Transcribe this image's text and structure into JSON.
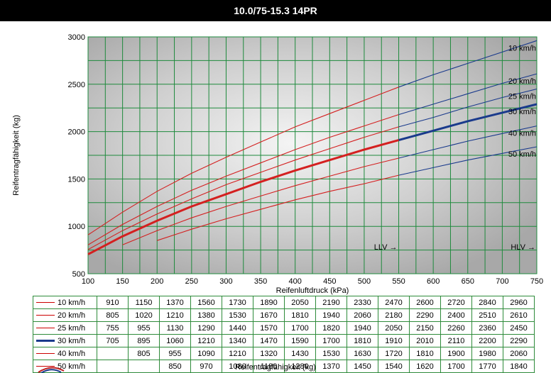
{
  "header": {
    "title": "10.0/75-15.3 14PR"
  },
  "chart_data": {
    "type": "line",
    "xlabel": "Reifenluftdruck (kPa)",
    "ylabel": "Reifentragfähigkeit (kg)",
    "xlim": [
      100,
      750
    ],
    "ylim": [
      500,
      3000
    ],
    "x_ticks": [
      100,
      150,
      200,
      250,
      300,
      350,
      400,
      450,
      500,
      550,
      600,
      650,
      700,
      750
    ],
    "y_ticks": [
      500,
      1000,
      1500,
      2000,
      2500,
      3000
    ],
    "grid": true,
    "x": [
      100,
      150,
      200,
      250,
      300,
      350,
      400,
      450,
      500,
      550,
      600,
      650,
      700,
      750
    ],
    "series": [
      {
        "name": "10 km/h",
        "values": [
          910,
          1150,
          1370,
          1560,
          1730,
          1890,
          2050,
          2190,
          2330,
          2470,
          2600,
          2720,
          2840,
          2960
        ]
      },
      {
        "name": "20 km/h",
        "values": [
          805,
          1020,
          1210,
          1380,
          1530,
          1670,
          1810,
          1940,
          2060,
          2180,
          2290,
          2400,
          2510,
          2610
        ]
      },
      {
        "name": "25 km/h",
        "values": [
          755,
          955,
          1130,
          1290,
          1440,
          1570,
          1700,
          1820,
          1940,
          2050,
          2150,
          2260,
          2360,
          2450
        ]
      },
      {
        "name": "30 km/h",
        "values": [
          705,
          895,
          1060,
          1210,
          1340,
          1470,
          1590,
          1700,
          1810,
          1910,
          2010,
          2110,
          2200,
          2290
        ]
      },
      {
        "name": "40 km/h",
        "values": [
          null,
          805,
          955,
          1090,
          1210,
          1320,
          1430,
          1530,
          1630,
          1720,
          1810,
          1900,
          1980,
          2060
        ]
      },
      {
        "name": "50 km/h",
        "values": [
          null,
          null,
          850,
          970,
          1080,
          1180,
          1280,
          1370,
          1450,
          1540,
          1620,
          1700,
          1770,
          1840
        ]
      }
    ],
    "highlight_series": "30 km/h",
    "color_change_at_x": 550,
    "annotations": [
      {
        "text": "LLV →",
        "x": 550
      },
      {
        "text": "HLV →",
        "x": 750
      }
    ],
    "colors": {
      "low_pressure": "#d42020",
      "high_pressure": "#1a3a8c",
      "grid": "#1e8a3c",
      "plot_bg": "#c8c8c8"
    }
  },
  "table": {
    "caption": "Reifentragfähigkeit (kg)"
  }
}
